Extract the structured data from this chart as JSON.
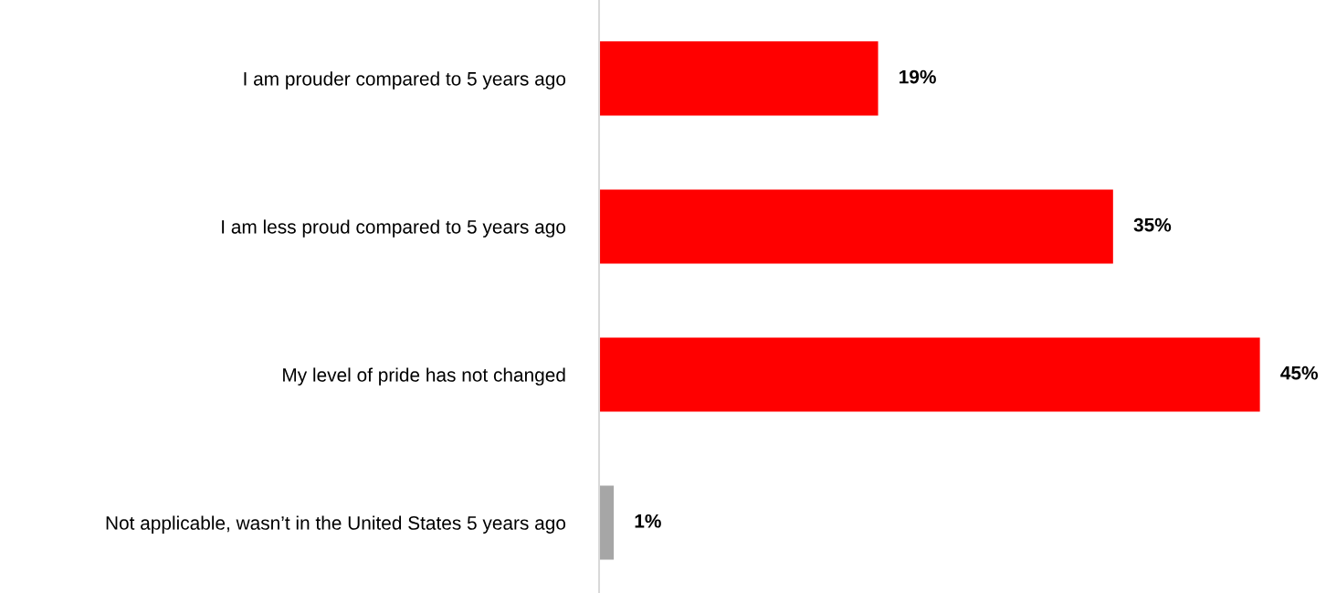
{
  "chart_data": {
    "type": "bar",
    "orientation": "horizontal",
    "categories": [
      "I am prouder compared to 5 years ago",
      "I am less proud compared to 5 years ago",
      "My level of pride has not changed",
      "Not applicable, wasn’t in the United States 5 years ago"
    ],
    "values": [
      19,
      35,
      45,
      1
    ],
    "colors": [
      "#ff0000",
      "#ff0000",
      "#ff0000",
      "#a6a6a6"
    ],
    "value_labels": [
      "19%",
      "35%",
      "45%",
      "1%"
    ],
    "grid": false,
    "legend": false
  }
}
